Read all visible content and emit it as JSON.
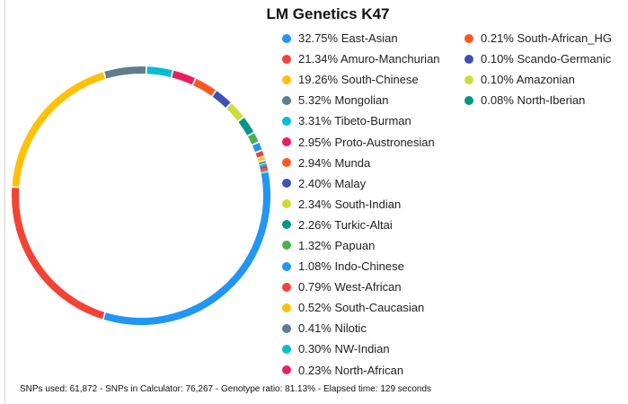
{
  "chart_data": {
    "type": "pie",
    "title": "LM Genetics K47",
    "slices": [
      {
        "label": "East-Asian",
        "value": 32.75,
        "color": "#2196f3"
      },
      {
        "label": "Amuro-Manchurian",
        "value": 21.34,
        "color": "#f44336"
      },
      {
        "label": "South-Chinese",
        "value": 19.26,
        "color": "#ffc107"
      },
      {
        "label": "Mongolian",
        "value": 5.32,
        "color": "#607d8b"
      },
      {
        "label": "Tibeto-Burman",
        "value": 3.31,
        "color": "#00bcd4"
      },
      {
        "label": "Proto-Austronesian",
        "value": 2.95,
        "color": "#e91e63"
      },
      {
        "label": "Munda",
        "value": 2.94,
        "color": "#ff5722"
      },
      {
        "label": "Malay",
        "value": 2.4,
        "color": "#3f51b5"
      },
      {
        "label": "South-Indian",
        "value": 2.34,
        "color": "#cddc39"
      },
      {
        "label": "Turkic-Altai",
        "value": 2.26,
        "color": "#009688"
      },
      {
        "label": "Papuan",
        "value": 1.32,
        "color": "#4caf50"
      },
      {
        "label": "Indo-Chinese",
        "value": 1.08,
        "color": "#2196f3"
      },
      {
        "label": "West-African",
        "value": 0.79,
        "color": "#f44336"
      },
      {
        "label": "South-Caucasian",
        "value": 0.52,
        "color": "#ffc107"
      },
      {
        "label": "Nilotic",
        "value": 0.41,
        "color": "#607d8b"
      },
      {
        "label": "NW-Indian",
        "value": 0.3,
        "color": "#00bcd4"
      },
      {
        "label": "North-African",
        "value": 0.23,
        "color": "#e91e63"
      },
      {
        "label": "South-African_HG",
        "value": 0.21,
        "color": "#ff5722"
      },
      {
        "label": "Scando-Germanic",
        "value": 0.1,
        "color": "#3f51b5"
      },
      {
        "label": "Amazonian",
        "value": 0.1,
        "color": "#cddc39"
      },
      {
        "label": "North-Iberian",
        "value": 0.08,
        "color": "#009688"
      }
    ],
    "legend_placement": "right"
  },
  "footer_text": "SNPs used: 61,872 - SNPs in Calculator: 76,267 - Genotype ratio: 81.13% - Elapsed time: 129 seconds"
}
